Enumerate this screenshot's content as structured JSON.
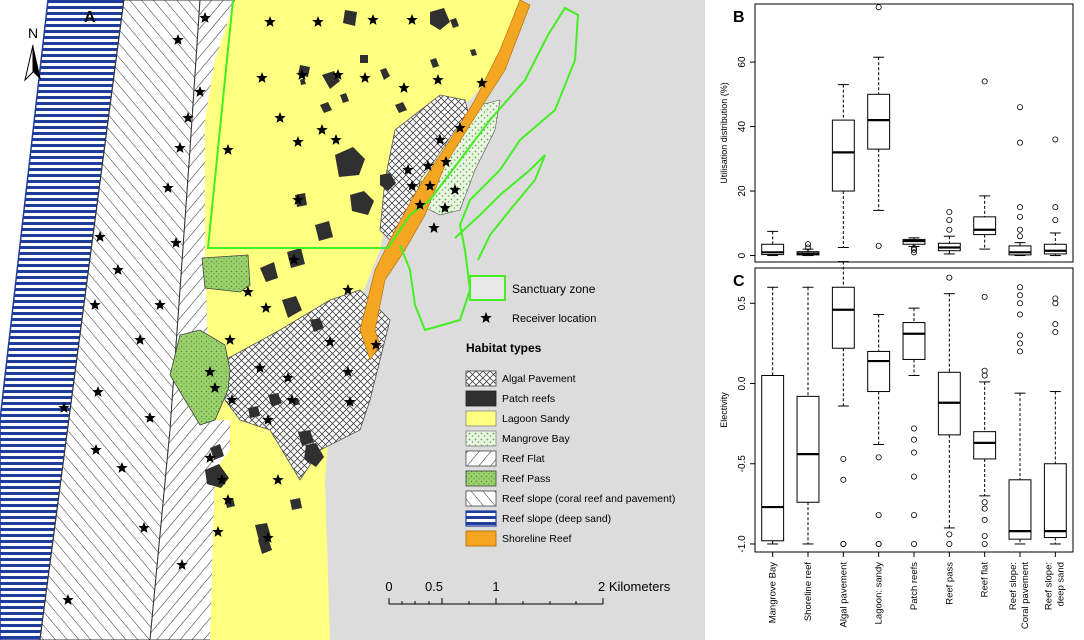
{
  "panel_a": {
    "label": "A",
    "north": "N",
    "scale_ticks": [
      "0",
      "0.5",
      "1",
      "2 Kilometers"
    ],
    "legend": {
      "sanctuary": "Sanctuary zone",
      "receiver": "Receiver location",
      "title": "Habitat types",
      "items": [
        {
          "key": "algal",
          "label": "Algal Pavement"
        },
        {
          "key": "patch",
          "label": "Patch reefs"
        },
        {
          "key": "lagoon",
          "label": "Lagoon Sandy"
        },
        {
          "key": "mangrove",
          "label": "Mangrove Bay"
        },
        {
          "key": "flat",
          "label": "Reef Flat"
        },
        {
          "key": "pass",
          "label": "Reef Pass"
        },
        {
          "key": "slopecoral",
          "label": "Reef slope (coral reef and pavement)"
        },
        {
          "key": "slopedeep",
          "label": "Reef slope (deep sand)"
        },
        {
          "key": "shoreline",
          "label": "Shoreline Reef"
        }
      ]
    },
    "colors": {
      "land": "#dcdcdc",
      "lagoon": "#ffff80",
      "deep_sand": "#1f3d9c",
      "pass": "#9bd16d",
      "shoreline": "#f4a623",
      "sanctuary": "#44ee22",
      "patch": "#303030"
    }
  },
  "chart_data": [
    {
      "panel": "B",
      "type": "box",
      "title": "",
      "xlabel": "",
      "ylabel": "Utilisation distribution (%)",
      "ylim": [
        -2,
        78
      ],
      "yticks": [
        0,
        20,
        40,
        60
      ],
      "categories": [
        "Mangrove Bay",
        "Shoreline reef",
        "Algal pavement",
        "Lagoon: sandy",
        "Patch reefs",
        "Reef pass",
        "Reef flat",
        "Reef slope: Coral pavement",
        "Reef slope: deep sand"
      ],
      "boxes": [
        {
          "min": 0,
          "q1": 0.3,
          "median": 1,
          "q3": 3.5,
          "max": 7.5,
          "outliers": []
        },
        {
          "min": 0,
          "q1": 0.2,
          "median": 0.6,
          "q3": 1.2,
          "max": 2,
          "outliers": [
            2.5,
            3.5
          ]
        },
        {
          "min": 2.5,
          "q1": 20,
          "median": 32,
          "q3": 42,
          "max": 53,
          "outliers": []
        },
        {
          "min": 14,
          "q1": 33,
          "median": 42,
          "q3": 50,
          "max": 61.5,
          "outliers": [
            3,
            77
          ]
        },
        {
          "min": 2.8,
          "q1": 3.5,
          "median": 4.5,
          "q3": 5,
          "max": 5.5,
          "outliers": [
            1,
            1.8,
            2.3
          ]
        },
        {
          "min": 0.5,
          "q1": 1.5,
          "median": 2.5,
          "q3": 3.8,
          "max": 6,
          "outliers": [
            8,
            11,
            13.5
          ]
        },
        {
          "min": 2,
          "q1": 6.5,
          "median": 8,
          "q3": 12,
          "max": 18.5,
          "outliers": [
            54
          ]
        },
        {
          "min": 0,
          "q1": 0.2,
          "median": 1,
          "q3": 3,
          "max": 4,
          "outliers": [
            6,
            8,
            12,
            15,
            35,
            46
          ]
        },
        {
          "min": 0,
          "q1": 0.5,
          "median": 1.5,
          "q3": 3.5,
          "max": 7,
          "outliers": [
            11,
            15,
            36
          ]
        }
      ]
    },
    {
      "panel": "C",
      "type": "box",
      "title": "",
      "xlabel": "",
      "ylabel": "Electivity",
      "ylim": [
        -1.05,
        0.72
      ],
      "yticks": [
        -1.0,
        -0.5,
        0.0,
        0.5
      ],
      "ytick_labels": [
        "-1.0",
        "-0.5",
        "0.0",
        "0.5"
      ],
      "categories": [
        "Mangrove Bay",
        "Shoreline reef",
        "Algal pavement",
        "Lagoon: sandy",
        "Patch reefs",
        "Reef pass",
        "Reef flat",
        "Reef slope: Coral pavement",
        "Reef slope: deep sand"
      ],
      "boxes": [
        {
          "min": -1.0,
          "q1": -0.98,
          "median": -0.77,
          "q3": 0.05,
          "max": 0.6,
          "outliers": []
        },
        {
          "min": -1.0,
          "q1": -0.74,
          "median": -0.44,
          "q3": -0.08,
          "max": 0.6,
          "outliers": []
        },
        {
          "min": -0.14,
          "q1": 0.22,
          "median": 0.46,
          "q3": 0.6,
          "max": 0.76,
          "outliers": [
            -0.47,
            -0.6,
            -1.0,
            -1.0
          ]
        },
        {
          "min": -0.38,
          "q1": -0.05,
          "median": 0.14,
          "q3": 0.2,
          "max": 0.43,
          "outliers": [
            -0.46,
            -0.82,
            -1.0,
            -1.0
          ]
        },
        {
          "min": 0.05,
          "q1": 0.15,
          "median": 0.31,
          "q3": 0.38,
          "max": 0.47,
          "outliers": [
            -0.28,
            -0.35,
            -0.43,
            -0.58,
            -0.82,
            -1.0
          ]
        },
        {
          "min": -0.9,
          "q1": -0.32,
          "median": -0.12,
          "q3": 0.07,
          "max": 0.56,
          "outliers": [
            0.66,
            -0.94,
            -1.0
          ]
        },
        {
          "min": -0.7,
          "q1": -0.47,
          "median": -0.37,
          "q3": -0.3,
          "max": 0.01,
          "outliers": [
            0.54,
            0.05,
            0.08,
            -0.74,
            -0.78,
            -0.85,
            -0.95,
            -1.0
          ]
        },
        {
          "min": -1.0,
          "q1": -0.97,
          "median": -0.92,
          "q3": -0.6,
          "max": -0.06,
          "outliers": [
            0.2,
            0.25,
            0.3,
            0.43,
            0.5,
            0.55,
            0.6
          ]
        },
        {
          "min": -1.0,
          "q1": -0.96,
          "median": -0.92,
          "q3": -0.5,
          "max": -0.05,
          "outliers": [
            0.32,
            0.37,
            0.5,
            0.53
          ]
        }
      ]
    }
  ]
}
